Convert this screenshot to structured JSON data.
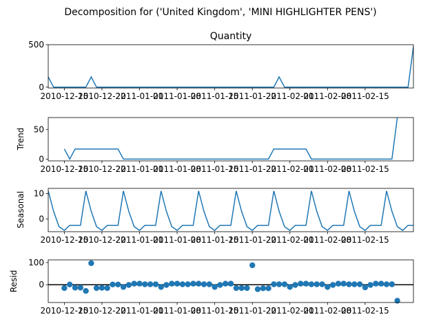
{
  "figure": {
    "suptitle": "Decomposition for ('United Kingdom', 'MINI HIGHLIGHTER PENS')"
  },
  "colors": {
    "line": "#1f77b4",
    "marker": "#1f77b4",
    "axis": "#000000",
    "zero_line": "#000000"
  },
  "x_tick_labels": [
    "2010-12-15",
    "2010-12-22",
    "2011-01-01",
    "2011-01-08",
    "2011-01-15",
    "2011-01-22",
    "2011-02-01",
    "2011-02-08",
    "2011-02-15"
  ],
  "chart_data": [
    {
      "type": "line",
      "title": "Quantity",
      "ylabel": "",
      "ylim": [
        -10,
        500
      ],
      "yticks": [
        0,
        500
      ],
      "x": [
        1,
        2,
        3,
        4,
        5,
        6,
        7,
        8,
        9,
        10,
        11,
        12,
        13,
        14,
        15,
        16,
        17,
        18,
        19,
        20,
        21,
        22,
        23,
        24,
        25,
        26,
        27,
        28,
        29,
        30,
        31,
        32,
        33,
        34,
        35,
        36,
        37,
        38,
        39,
        40,
        41,
        42,
        43,
        44,
        45,
        46,
        47,
        48,
        49,
        50,
        51,
        52,
        53,
        54,
        55,
        56,
        57,
        58,
        59,
        60,
        61,
        62,
        63,
        64,
        65,
        66,
        67,
        68,
        69
      ],
      "values": [
        120,
        0,
        0,
        0,
        0,
        0,
        0,
        0,
        120,
        0,
        0,
        0,
        0,
        0,
        0,
        0,
        0,
        0,
        0,
        0,
        0,
        0,
        0,
        0,
        0,
        0,
        0,
        0,
        0,
        0,
        0,
        0,
        0,
        0,
        0,
        0,
        0,
        0,
        0,
        0,
        0,
        0,
        0,
        120,
        0,
        0,
        0,
        0,
        0,
        0,
        0,
        0,
        0,
        0,
        0,
        0,
        0,
        0,
        0,
        0,
        0,
        0,
        0,
        0,
        0,
        0,
        0,
        0,
        480
      ]
    },
    {
      "type": "line",
      "title": "",
      "ylabel": "Trend",
      "ylim": [
        -3,
        70
      ],
      "yticks": [
        0,
        50
      ],
      "x": [
        4,
        5,
        6,
        7,
        8,
        9,
        10,
        11,
        12,
        13,
        14,
        15,
        16,
        17,
        18,
        19,
        20,
        21,
        22,
        23,
        24,
        25,
        26,
        27,
        28,
        29,
        30,
        31,
        32,
        33,
        34,
        35,
        36,
        37,
        38,
        39,
        40,
        41,
        42,
        43,
        44,
        45,
        46,
        47,
        48,
        49,
        50,
        51,
        52,
        53,
        54,
        55,
        56,
        57,
        58,
        59,
        60,
        61,
        62,
        63,
        64,
        65,
        66
      ],
      "values": [
        17,
        0,
        17,
        17,
        17,
        17,
        17,
        17,
        17,
        17,
        17,
        0,
        0,
        0,
        0,
        0,
        0,
        0,
        0,
        0,
        0,
        0,
        0,
        0,
        0,
        0,
        0,
        0,
        0,
        0,
        0,
        0,
        0,
        0,
        0,
        0,
        0,
        0,
        0,
        17,
        17,
        17,
        17,
        17,
        17,
        17,
        0,
        0,
        0,
        0,
        0,
        0,
        0,
        0,
        0,
        0,
        0,
        0,
        0,
        0,
        0,
        0,
        70
      ]
    },
    {
      "type": "line",
      "title": "",
      "ylabel": "Seasonal",
      "ylim": [
        -5,
        12
      ],
      "yticks": [
        0,
        10
      ],
      "x": [
        1,
        2,
        3,
        4,
        5,
        6,
        7,
        8,
        9,
        10,
        11,
        12,
        13,
        14,
        15,
        16,
        17,
        18,
        19,
        20,
        21,
        22,
        23,
        24,
        25,
        26,
        27,
        28,
        29,
        30,
        31,
        32,
        33,
        34,
        35,
        36,
        37,
        38,
        39,
        40,
        41,
        42,
        43,
        44,
        45,
        46,
        47,
        48,
        49,
        50,
        51,
        52,
        53,
        54,
        55,
        56,
        57,
        58,
        59,
        60,
        61,
        62,
        63,
        64,
        65,
        66,
        67,
        68,
        69
      ],
      "values": [
        11,
        3,
        -3,
        -4.5,
        -2.5,
        -2.5,
        -2.5,
        11,
        3,
        -3,
        -4.5,
        -2.5,
        -2.5,
        -2.5,
        11,
        3,
        -3,
        -4.5,
        -2.5,
        -2.5,
        -2.5,
        11,
        3,
        -3,
        -4.5,
        -2.5,
        -2.5,
        -2.5,
        11,
        3,
        -3,
        -4.5,
        -2.5,
        -2.5,
        -2.5,
        11,
        3,
        -3,
        -4.5,
        -2.5,
        -2.5,
        -2.5,
        11,
        3,
        -3,
        -4.5,
        -2.5,
        -2.5,
        -2.5,
        11,
        3,
        -3,
        -4.5,
        -2.5,
        -2.5,
        -2.5,
        11,
        3,
        -3,
        -4.5,
        -2.5,
        -2.5,
        -2.5,
        11,
        3,
        -3,
        -4.5,
        -2.5,
        -2.5
      ]
    },
    {
      "type": "scatter",
      "title": "",
      "ylabel": "Resid",
      "ylim": [
        -80,
        112
      ],
      "yticks": [
        0,
        100
      ],
      "zero_line": true,
      "x": [
        4,
        5,
        6,
        7,
        8,
        9,
        10,
        11,
        12,
        13,
        14,
        15,
        16,
        17,
        18,
        19,
        20,
        21,
        22,
        23,
        24,
        25,
        26,
        27,
        28,
        29,
        30,
        31,
        32,
        33,
        34,
        35,
        36,
        37,
        38,
        39,
        40,
        41,
        42,
        43,
        44,
        45,
        46,
        47,
        48,
        49,
        50,
        51,
        52,
        53,
        54,
        55,
        56,
        57,
        58,
        59,
        60,
        61,
        62,
        63,
        64,
        65,
        66
      ],
      "values": [
        -15,
        1,
        -13,
        -13,
        -28,
        97,
        -15,
        -14,
        -15,
        1,
        1,
        -10,
        -1,
        5,
        5,
        2,
        2,
        2,
        -10,
        -1,
        5,
        5,
        2,
        2,
        5,
        5,
        2,
        2,
        -10,
        -1,
        5,
        5,
        -15,
        -15,
        -15,
        88,
        -20,
        -16,
        -16,
        2,
        2,
        2,
        -10,
        -1,
        5,
        5,
        2,
        2,
        2,
        -10,
        -1,
        5,
        5,
        2,
        2,
        2,
        -12,
        -1,
        5,
        5,
        2,
        2,
        -72
      ]
    }
  ]
}
